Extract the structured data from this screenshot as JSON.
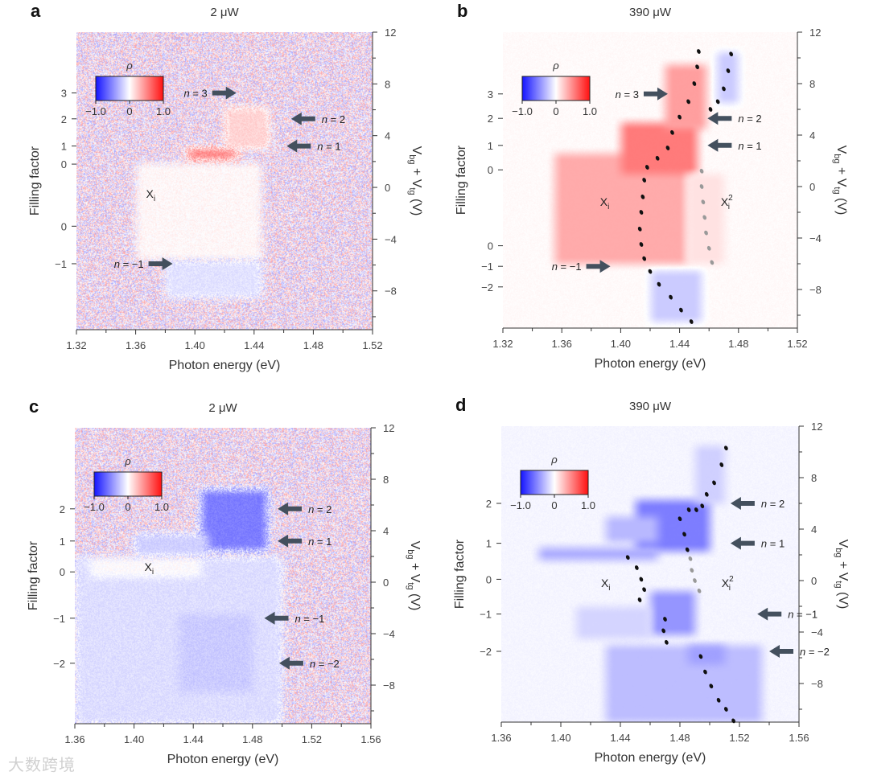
{
  "watermark": "大数跨境",
  "chart_data": [
    {
      "type": "heatmap",
      "panel_label": "a",
      "title": "2 μW",
      "xlabel": "Photon energy (eV)",
      "ylabel_left": "Filling factor",
      "ylabel_right": "V_bg + V_tg (V)",
      "xlim": [
        1.32,
        1.52
      ],
      "xticks": [
        "1.32",
        "1.36",
        "1.40",
        "1.44",
        "1.48",
        "1.52"
      ],
      "ylim_right": [
        -11,
        12
      ],
      "yticks_right": [
        "12",
        "8",
        "4",
        "0",
        "-4",
        "-8"
      ],
      "filling_ticks": [
        {
          "label": "3",
          "v": 7.3
        },
        {
          "label": "2",
          "v": 5.3
        },
        {
          "label": "1",
          "v": 3.2
        },
        {
          "label": "0",
          "v": 1.8
        },
        {
          "label": "0",
          "v": -3.0
        },
        {
          "label": "-1",
          "v": -5.9
        }
      ],
      "colorbar": {
        "label": "ρ",
        "min": "-1.0",
        "mid": "0",
        "max": "1.0"
      },
      "noise": 0.4,
      "background_rho": 0.0,
      "regions": [
        {
          "e": [
            1.36,
            1.445
          ],
          "v": [
            -5.6,
            1.9
          ],
          "rho": 0.03
        },
        {
          "e": [
            1.395,
            1.428
          ],
          "v": [
            2.2,
            3.0
          ],
          "rho": 0.55
        },
        {
          "e": [
            1.42,
            1.45
          ],
          "v": [
            3.0,
            6.2
          ],
          "rho": 0.18
        },
        {
          "e": [
            1.38,
            1.445
          ],
          "v": [
            -8.5,
            -5.6
          ],
          "rho": -0.12
        }
      ],
      "annotations": [
        {
          "text": "n = 3",
          "e": 1.428,
          "v": 7.3,
          "dir": "right"
        },
        {
          "text": "n = 2",
          "e": 1.465,
          "v": 5.3,
          "dir": "left"
        },
        {
          "text": "n = 1",
          "e": 1.462,
          "v": 3.2,
          "dir": "left"
        },
        {
          "text": "n = −1",
          "e": 1.385,
          "v": -5.9,
          "dir": "right"
        }
      ],
      "labels": [
        {
          "text": "X",
          "sub": "i",
          "sup": "",
          "e": 1.367,
          "v": -0.5
        }
      ],
      "traces": []
    },
    {
      "type": "heatmap",
      "panel_label": "b",
      "title": "390 μW",
      "xlabel": "Photon energy (eV)",
      "ylabel_left": "Filling factor",
      "ylabel_right": "V_bg + V_tg (V)",
      "xlim": [
        1.32,
        1.52
      ],
      "xticks": [
        "1.32",
        "1.36",
        "1.40",
        "1.44",
        "1.48",
        "1.52"
      ],
      "ylim_right": [
        -11,
        12
      ],
      "yticks_right": [
        "12",
        "8",
        "4",
        "0",
        "-4",
        "-8"
      ],
      "filling_ticks": [
        {
          "label": "3",
          "v": 7.2
        },
        {
          "label": "2",
          "v": 5.3
        },
        {
          "label": "1",
          "v": 3.2
        },
        {
          "label": "0",
          "v": 1.3
        },
        {
          "label": "0",
          "v": -4.6
        },
        {
          "label": "-1",
          "v": -6.2
        },
        {
          "label": "-2",
          "v": -7.8
        }
      ],
      "colorbar": {
        "label": "ρ",
        "min": "-1.0",
        "mid": "0",
        "max": "1.0"
      },
      "noise": 0.02,
      "background_rho": 0.02,
      "regions": [
        {
          "e": [
            1.355,
            1.445
          ],
          "v": [
            -6.0,
            2.6
          ],
          "rho": 0.35
        },
        {
          "e": [
            1.4,
            1.452
          ],
          "v": [
            1.0,
            5.0
          ],
          "rho": 0.55
        },
        {
          "e": [
            1.43,
            1.458
          ],
          "v": [
            4.5,
            9.5
          ],
          "rho": 0.4
        },
        {
          "e": [
            1.42,
            1.455
          ],
          "v": [
            -10.5,
            -6.5
          ],
          "rho": -0.22
        },
        {
          "e": [
            1.465,
            1.48
          ],
          "v": [
            6.5,
            10.5
          ],
          "rho": -0.22
        },
        {
          "e": [
            1.445,
            1.47
          ],
          "v": [
            -6.0,
            1.0
          ],
          "rho": 0.12
        }
      ],
      "annotations": [
        {
          "text": "n = 3",
          "e": 1.432,
          "v": 7.2,
          "dir": "right"
        },
        {
          "text": "n = 2",
          "e": 1.459,
          "v": 5.3,
          "dir": "left"
        },
        {
          "text": "n = 1",
          "e": 1.459,
          "v": 3.2,
          "dir": "left"
        },
        {
          "text": "n = −1",
          "e": 1.393,
          "v": -6.2,
          "dir": "right"
        }
      ],
      "labels": [
        {
          "text": "X",
          "sub": "i",
          "sup": "",
          "e": 1.386,
          "v": -1.2
        },
        {
          "text": "X",
          "sub": "i",
          "sup": "2",
          "e": 1.468,
          "v": -1.2
        }
      ],
      "traces": [
        {
          "color": "#111",
          "points": [
            [
              1.453,
              10.5
            ],
            [
              1.452,
              9.3
            ],
            [
              1.45,
              8.0
            ],
            [
              1.446,
              6.6
            ],
            [
              1.44,
              5.4
            ],
            [
              1.435,
              4.2
            ],
            [
              1.432,
              3.0
            ],
            [
              1.425,
              2.2
            ],
            [
              1.418,
              1.5
            ],
            [
              1.416,
              0.5
            ],
            [
              1.415,
              -0.8
            ],
            [
              1.414,
              -2.0
            ],
            [
              1.413,
              -3.3
            ],
            [
              1.414,
              -4.5
            ],
            [
              1.416,
              -5.6
            ],
            [
              1.42,
              -6.6
            ],
            [
              1.426,
              -7.6
            ],
            [
              1.434,
              -8.6
            ],
            [
              1.441,
              -9.6
            ],
            [
              1.448,
              -10.5
            ]
          ]
        },
        {
          "color": "#111",
          "points": [
            [
              1.475,
              10.3
            ],
            [
              1.473,
              9.0
            ],
            [
              1.47,
              7.6
            ],
            [
              1.466,
              6.6
            ],
            [
              1.461,
              6.0
            ]
          ]
        },
        {
          "color": "#999",
          "points": [
            [
              1.455,
              1.2
            ],
            [
              1.455,
              0.0
            ],
            [
              1.456,
              -1.2
            ],
            [
              1.457,
              -2.4
            ],
            [
              1.458,
              -3.6
            ],
            [
              1.46,
              -4.8
            ],
            [
              1.462,
              -5.9
            ]
          ]
        }
      ]
    },
    {
      "type": "heatmap",
      "panel_label": "c",
      "title": "2 μW",
      "xlabel": "Photon energy (eV)",
      "ylabel_left": "Filling factor",
      "ylabel_right": "V_bg + V_tg (V)",
      "xlim": [
        1.36,
        1.56
      ],
      "xticks": [
        "1.36",
        "1.40",
        "1.44",
        "1.48",
        "1.52",
        "1.56"
      ],
      "ylim_right": [
        -11,
        12
      ],
      "yticks_right": [
        "12",
        "8",
        "4",
        "0",
        "-4",
        "-8"
      ],
      "filling_ticks": [
        {
          "label": "2",
          "v": 5.7
        },
        {
          "label": "1",
          "v": 3.2
        },
        {
          "label": "0",
          "v": 0.8
        },
        {
          "label": "-1",
          "v": -2.8
        },
        {
          "label": "-2",
          "v": -6.3
        }
      ],
      "colorbar": {
        "label": "ρ",
        "min": "-1.0",
        "mid": "0",
        "max": "1.0"
      },
      "noise": 0.4,
      "background_rho": 0.0,
      "regions": [
        {
          "e": [
            1.36,
            1.5
          ],
          "v": [
            -11,
            2.0
          ],
          "rho": -0.14
        },
        {
          "e": [
            1.445,
            1.49
          ],
          "v": [
            2.5,
            7.2
          ],
          "rho": -0.55
        },
        {
          "e": [
            1.4,
            1.45
          ],
          "v": [
            2.0,
            3.8
          ],
          "rho": -0.2
        },
        {
          "e": [
            1.37,
            1.445
          ],
          "v": [
            0.4,
            2.0
          ],
          "rho": 0.0
        },
        {
          "e": [
            1.43,
            1.48
          ],
          "v": [
            -8.5,
            -2.5
          ],
          "rho": -0.22
        }
      ],
      "annotations": [
        {
          "text": "n = 2",
          "e": 1.497,
          "v": 5.7,
          "dir": "left"
        },
        {
          "text": "n = 1",
          "e": 1.497,
          "v": 3.2,
          "dir": "left"
        },
        {
          "text": "n = −1",
          "e": 1.488,
          "v": -2.8,
          "dir": "left"
        },
        {
          "text": "n = −2",
          "e": 1.498,
          "v": -6.3,
          "dir": "left"
        }
      ],
      "labels": [
        {
          "text": "X",
          "sub": "i",
          "sup": "",
          "e": 1.407,
          "v": 1.2
        }
      ],
      "traces": []
    },
    {
      "type": "heatmap",
      "panel_label": "d",
      "title": "390 μW",
      "xlabel": "Photon energy (eV)",
      "ylabel_left": "Filling factor",
      "ylabel_right": "V_bg + V_tg (V)",
      "xlim": [
        1.36,
        1.56
      ],
      "xticks": [
        "1.36",
        "1.40",
        "1.44",
        "1.48",
        "1.52",
        "1.56"
      ],
      "ylim_right": [
        -11,
        12
      ],
      "yticks_right": [
        "12",
        "8",
        "4",
        "0",
        "-4",
        "-8"
      ],
      "filling_ticks": [
        {
          "label": "2",
          "v": 6.0
        },
        {
          "label": "1",
          "v": 2.9
        },
        {
          "label": "0",
          "v": 0.1
        },
        {
          "label": "-1",
          "v": -2.6
        },
        {
          "label": "-2",
          "v": -5.5
        }
      ],
      "colorbar": {
        "label": "ρ",
        "min": "-1.0",
        "mid": "0",
        "max": "1.0"
      },
      "noise": 0.02,
      "background_rho": -0.04,
      "regions": [
        {
          "e": [
            1.45,
            1.5
          ],
          "v": [
            2.3,
            6.3
          ],
          "rho": -0.55
        },
        {
          "e": [
            1.43,
            1.465
          ],
          "v": [
            3.0,
            5.0
          ],
          "rho": -0.3
        },
        {
          "e": [
            1.385,
            1.465
          ],
          "v": [
            1.6,
            2.6
          ],
          "rho": -0.35
        },
        {
          "e": [
            1.46,
            1.49
          ],
          "v": [
            -4.2,
            -0.8
          ],
          "rho": -0.45
        },
        {
          "e": [
            1.41,
            1.46
          ],
          "v": [
            -4.5,
            -2.0
          ],
          "rho": -0.18
        },
        {
          "e": [
            1.43,
            1.535
          ],
          "v": [
            -11,
            -5.0
          ],
          "rho": -0.28
        },
        {
          "e": [
            1.485,
            1.51
          ],
          "v": [
            -6.5,
            -5.0
          ],
          "rho": -0.4
        },
        {
          "e": [
            1.49,
            1.51
          ],
          "v": [
            6.0,
            10.5
          ],
          "rho": -0.2
        }
      ],
      "annotations": [
        {
          "text": "n = 2",
          "e": 1.514,
          "v": 6.0,
          "dir": "left"
        },
        {
          "text": "n = 1",
          "e": 1.514,
          "v": 2.9,
          "dir": "left"
        },
        {
          "text": "n = −1",
          "e": 1.532,
          "v": -2.6,
          "dir": "left"
        },
        {
          "text": "n = −2",
          "e": 1.54,
          "v": -5.5,
          "dir": "left"
        }
      ],
      "labels": [
        {
          "text": "X",
          "sub": "i",
          "sup": "",
          "e": 1.427,
          "v": -0.2
        },
        {
          "text": "X",
          "sub": "i",
          "sup": "2",
          "e": 1.508,
          "v": -0.2
        }
      ],
      "traces": [
        {
          "color": "#111",
          "points": [
            [
              1.511,
              10.3
            ],
            [
              1.508,
              9.0
            ],
            [
              1.503,
              7.6
            ],
            [
              1.498,
              6.7
            ],
            [
              1.495,
              5.8
            ],
            [
              1.491,
              5.5
            ],
            [
              1.486,
              5.5
            ],
            [
              1.48,
              4.8
            ],
            [
              1.483,
              3.6
            ],
            [
              1.485,
              2.4
            ]
          ]
        },
        {
          "color": "#999",
          "points": [
            [
              1.487,
              1.7
            ],
            [
              1.488,
              0.8
            ],
            [
              1.49,
              0.0
            ],
            [
              1.493,
              -0.8
            ]
          ]
        },
        {
          "color": "#111",
          "points": [
            [
              1.445,
              1.8
            ],
            [
              1.451,
              1.0
            ],
            [
              1.454,
              0.1
            ],
            [
              1.456,
              -0.7
            ],
            [
              1.453,
              -1.5
            ]
          ]
        },
        {
          "color": "#111",
          "points": [
            [
              1.47,
              -3.0
            ],
            [
              1.469,
              -3.9
            ],
            [
              1.471,
              -4.8
            ]
          ]
        },
        {
          "color": "#111",
          "points": [
            [
              1.494,
              -5.9
            ],
            [
              1.497,
              -7.1
            ],
            [
              1.501,
              -8.2
            ],
            [
              1.506,
              -9.3
            ],
            [
              1.511,
              -10.0
            ],
            [
              1.516,
              -10.9
            ]
          ]
        }
      ]
    }
  ]
}
